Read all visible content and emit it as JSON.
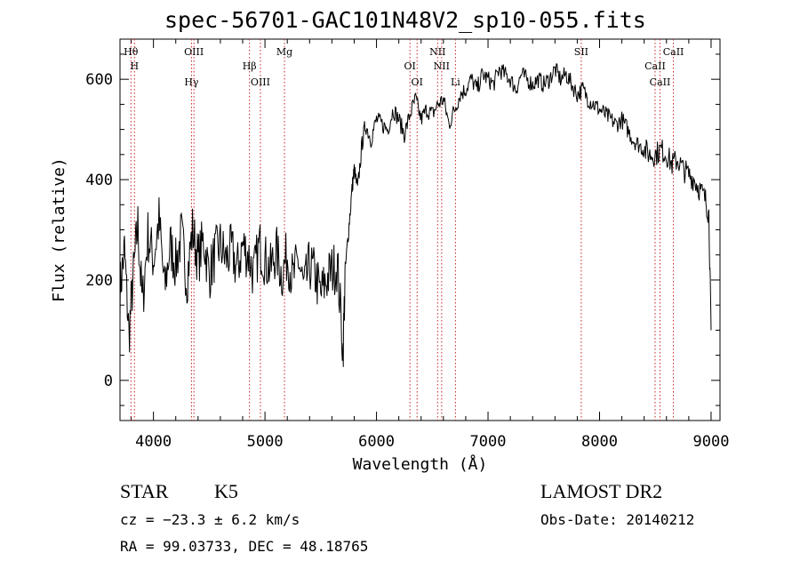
{
  "chart_data": {
    "type": "line",
    "title": "spec-56701-GAC101N48V2_sp10-055.fits",
    "xlabel": "Wavelength (Å)",
    "ylabel": "Flux (relative)",
    "xlim": [
      3700,
      9080
    ],
    "ylim": [
      -80,
      680
    ],
    "xticks": [
      4000,
      5000,
      6000,
      7000,
      8000,
      9000
    ],
    "yticks": [
      0,
      200,
      400,
      600
    ],
    "grid": false,
    "legend": "none",
    "colors": {
      "line": "#000000",
      "marker": "#cc2222",
      "axis": "#000000"
    },
    "series": [
      {
        "x": [
          3700,
          3740,
          3780,
          3820,
          3860,
          3900,
          3950,
          4000,
          4050,
          4100,
          4150,
          4200,
          4250,
          4300,
          4350,
          4400,
          4450,
          4500,
          4550,
          4600,
          4650,
          4700,
          4750,
          4800,
          4850,
          4900,
          4950,
          5000,
          5050,
          5100,
          5150,
          5200,
          5250,
          5300,
          5350,
          5400,
          5450,
          5500,
          5550,
          5600,
          5650,
          5700,
          5720,
          5750,
          5780,
          5800,
          5830,
          5870,
          5900,
          5950,
          6000,
          6050,
          6100,
          6150,
          6200,
          6250,
          6300,
          6350,
          6400,
          6450,
          6500,
          6550,
          6600,
          6650,
          6700,
          6750,
          6800,
          6850,
          6900,
          6950,
          7000,
          7050,
          7100,
          7150,
          7200,
          7250,
          7300,
          7350,
          7400,
          7450,
          7500,
          7550,
          7600,
          7650,
          7700,
          7750,
          7800,
          7850,
          7900,
          7950,
          8000,
          8050,
          8100,
          8150,
          8200,
          8250,
          8300,
          8350,
          8400,
          8450,
          8500,
          8550,
          8600,
          8650,
          8700,
          8750,
          8800,
          8850,
          8900,
          8950,
          8980,
          9000
        ],
        "y": [
          180,
          260,
          90,
          210,
          310,
          150,
          290,
          240,
          320,
          180,
          270,
          230,
          290,
          200,
          300,
          240,
          280,
          210,
          250,
          270,
          240,
          260,
          220,
          270,
          250,
          210,
          270,
          240,
          220,
          260,
          210,
          250,
          200,
          240,
          180,
          230,
          210,
          170,
          200,
          220,
          230,
          60,
          220,
          300,
          380,
          420,
          380,
          470,
          510,
          480,
          520,
          510,
          500,
          540,
          520,
          490,
          530,
          560,
          520,
          540,
          530,
          550,
          560,
          510,
          540,
          570,
          580,
          600,
          580,
          610,
          600,
          590,
          620,
          610,
          600,
          580,
          610,
          600,
          590,
          600,
          590,
          600,
          620,
          600,
          610,
          590,
          570,
          580,
          560,
          550,
          540,
          530,
          520,
          510,
          520,
          500,
          480,
          470,
          460,
          450,
          450,
          460,
          450,
          430,
          440,
          420,
          410,
          400,
          380,
          360,
          330,
          100
        ]
      }
    ],
    "lines": [
      {
        "label": "Hθ",
        "x": 3798
      },
      {
        "label": "H",
        "x": 3830
      },
      {
        "label": "Hγ",
        "x": 4341
      },
      {
        "label": "OIII",
        "x": 4363
      },
      {
        "label": "Hβ",
        "x": 4861
      },
      {
        "label": "OIII",
        "x": 4959
      },
      {
        "label": "Mg",
        "x": 5175
      },
      {
        "label": "OI",
        "x": 6300
      },
      {
        "label": "OI",
        "x": 6364
      },
      {
        "label": "NII",
        "x": 6548
      },
      {
        "label": "NII",
        "x": 6584
      },
      {
        "label": "Li",
        "x": 6708
      },
      {
        "label": "SII",
        "x": 7836
      },
      {
        "label": "CaII",
        "x": 8498
      },
      {
        "label": "CaII",
        "x": 8542
      },
      {
        "label": "CaII",
        "x": 8662
      }
    ]
  },
  "info": {
    "object_class": "STAR",
    "subclass": "K5",
    "survey": "LAMOST DR2",
    "redshift": "cz = −23.3 ± 6.2 km/s",
    "obs_date": "Obs-Date: 20140212",
    "coords": "RA =  99.03733, DEC =  48.18765"
  }
}
